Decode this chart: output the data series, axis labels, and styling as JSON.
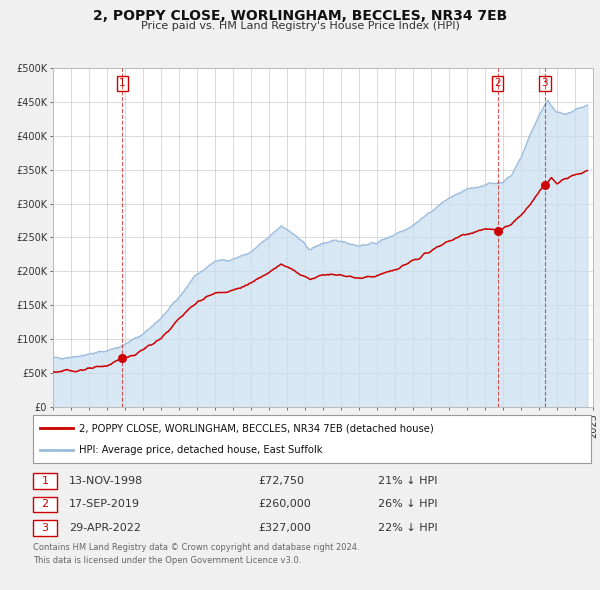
{
  "title": "2, POPPY CLOSE, WORLINGHAM, BECCLES, NR34 7EB",
  "subtitle": "Price paid vs. HM Land Registry's House Price Index (HPI)",
  "bg_color": "#f0f0f0",
  "plot_bg_color": "#ffffff",
  "legend_line1": "2, POPPY CLOSE, WORLINGHAM, BECCLES, NR34 7EB (detached house)",
  "legend_line2": "HPI: Average price, detached house, East Suffolk",
  "property_color": "#cc0000",
  "hpi_color": "#99bbdd",
  "hpi_fill_color": "#c8ddf0",
  "sale_points": [
    {
      "date_num": 1998.87,
      "value": 72750,
      "label": "1"
    },
    {
      "date_num": 2019.71,
      "value": 260000,
      "label": "2"
    },
    {
      "date_num": 2022.33,
      "value": 327000,
      "label": "3"
    }
  ],
  "table_rows": [
    {
      "num": "1",
      "date": "13-NOV-1998",
      "price": "£72,750",
      "hpi": "21% ↓ HPI"
    },
    {
      "num": "2",
      "date": "17-SEP-2019",
      "price": "£260,000",
      "hpi": "26% ↓ HPI"
    },
    {
      "num": "3",
      "date": "29-APR-2022",
      "price": "£327,000",
      "hpi": "22% ↓ HPI"
    }
  ],
  "footer_line1": "Contains HM Land Registry data © Crown copyright and database right 2024.",
  "footer_line2": "This data is licensed under the Open Government Licence v3.0.",
  "ylim": [
    0,
    500000
  ],
  "xlim": [
    1995,
    2025
  ],
  "yticks": [
    0,
    50000,
    100000,
    150000,
    200000,
    250000,
    300000,
    350000,
    400000,
    450000,
    500000
  ],
  "ytick_labels": [
    "£0",
    "£50K",
    "£100K",
    "£150K",
    "£200K",
    "£250K",
    "£300K",
    "£350K",
    "£400K",
    "£450K",
    "£500K"
  ]
}
